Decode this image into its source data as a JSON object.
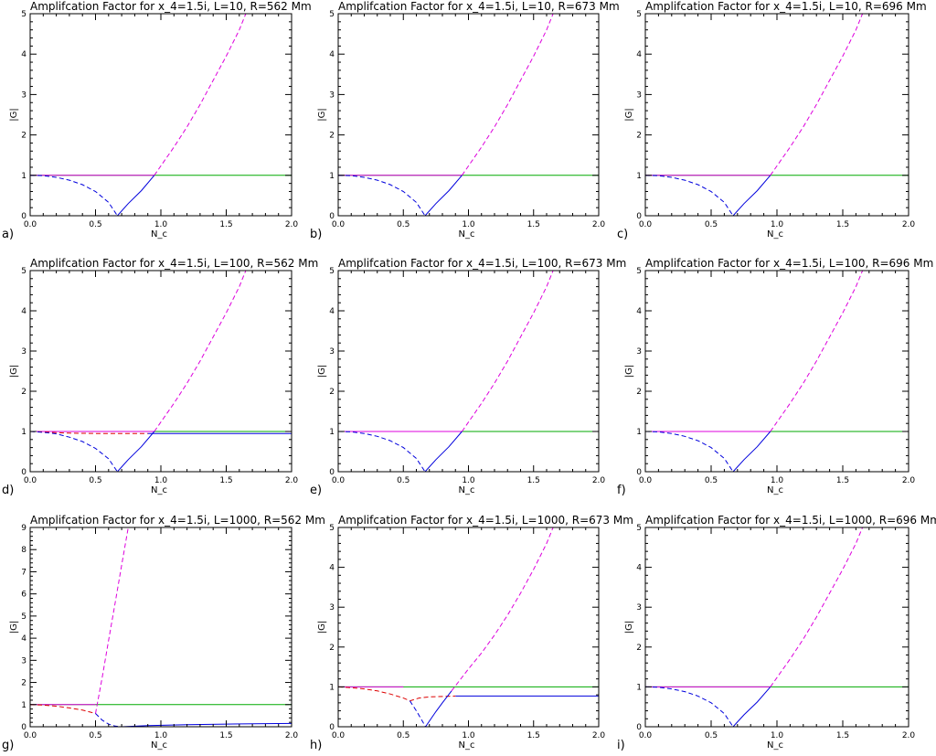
{
  "chart_data": [
    {
      "panel": "a)",
      "type": "line",
      "title": "Amplifcation Factor for x_4=1.5i, L=10, R=562 Mm",
      "xlabel": "N_c",
      "ylabel": "|G|",
      "xlim": [
        0,
        2
      ],
      "ylim": [
        0,
        5
      ],
      "xticks": [
        "0.0",
        "0.5",
        "1.0",
        "1.5",
        "2.0"
      ],
      "yticks": [
        "0",
        "1",
        "2",
        "3",
        "4",
        "5"
      ],
      "grid": false,
      "series": [
        {
          "color": "#00aa00",
          "dash": "solid",
          "x": [
            0,
            2
          ],
          "y": [
            1,
            1
          ]
        },
        {
          "color": "#dd00dd",
          "dash": "solid",
          "x": [
            0,
            0.95
          ],
          "y": [
            1,
            1
          ]
        },
        {
          "color": "#0000dd",
          "dash": "dashed",
          "x": [
            0,
            0.1,
            0.2,
            0.3,
            0.4,
            0.5,
            0.6,
            0.667
          ],
          "y": [
            1,
            0.99,
            0.95,
            0.88,
            0.77,
            0.6,
            0.33,
            0
          ]
        },
        {
          "color": "#0000dd",
          "dash": "solid",
          "x": [
            0.667,
            0.75,
            0.85,
            0.95
          ],
          "y": [
            0,
            0.3,
            0.62,
            1
          ]
        },
        {
          "color": "#dd00dd",
          "dash": "dashed",
          "x": [
            0.95,
            1.1,
            1.2,
            1.3,
            1.4,
            1.5,
            1.6,
            1.65
          ],
          "y": [
            1,
            1.7,
            2.2,
            2.75,
            3.35,
            3.95,
            4.6,
            5
          ]
        }
      ]
    },
    {
      "panel": "b)",
      "type": "line",
      "title": "Amplifcation Factor for x_4=1.5i, L=10, R=673 Mm",
      "xlabel": "N_c",
      "ylabel": "|G|",
      "xlim": [
        0,
        2
      ],
      "ylim": [
        0,
        5
      ],
      "xticks": [
        "0.0",
        "0.5",
        "1.0",
        "1.5",
        "2.0"
      ],
      "yticks": [
        "0",
        "1",
        "2",
        "3",
        "4",
        "5"
      ],
      "grid": false,
      "series": [
        {
          "color": "#00aa00",
          "dash": "solid",
          "x": [
            0,
            2
          ],
          "y": [
            1,
            1
          ]
        },
        {
          "color": "#dd00dd",
          "dash": "solid",
          "x": [
            0,
            0.95
          ],
          "y": [
            1,
            1
          ]
        },
        {
          "color": "#0000dd",
          "dash": "dashed",
          "x": [
            0,
            0.1,
            0.2,
            0.3,
            0.4,
            0.5,
            0.6,
            0.667
          ],
          "y": [
            1,
            0.99,
            0.95,
            0.88,
            0.77,
            0.6,
            0.33,
            0
          ]
        },
        {
          "color": "#0000dd",
          "dash": "solid",
          "x": [
            0.667,
            0.75,
            0.85,
            0.95
          ],
          "y": [
            0,
            0.3,
            0.62,
            1
          ]
        },
        {
          "color": "#dd00dd",
          "dash": "dashed",
          "x": [
            0.95,
            1.1,
            1.2,
            1.3,
            1.4,
            1.5,
            1.6,
            1.65
          ],
          "y": [
            1,
            1.7,
            2.2,
            2.75,
            3.35,
            3.95,
            4.6,
            5
          ]
        }
      ]
    },
    {
      "panel": "c)",
      "type": "line",
      "title": "Amplifcation Factor for x_4=1.5i, L=10, R=696 Mm",
      "xlabel": "N_c",
      "ylabel": "|G|",
      "xlim": [
        0,
        2
      ],
      "ylim": [
        0,
        5
      ],
      "xticks": [
        "0.0",
        "0.5",
        "1.0",
        "1.5",
        "2.0"
      ],
      "yticks": [
        "0",
        "1",
        "2",
        "3",
        "4",
        "5"
      ],
      "grid": false,
      "series": [
        {
          "color": "#00aa00",
          "dash": "solid",
          "x": [
            0,
            2
          ],
          "y": [
            1,
            1
          ]
        },
        {
          "color": "#dd00dd",
          "dash": "solid",
          "x": [
            0,
            0.95
          ],
          "y": [
            1,
            1
          ]
        },
        {
          "color": "#0000dd",
          "dash": "dashed",
          "x": [
            0,
            0.1,
            0.2,
            0.3,
            0.4,
            0.5,
            0.6,
            0.667
          ],
          "y": [
            1,
            0.99,
            0.95,
            0.88,
            0.77,
            0.6,
            0.33,
            0
          ]
        },
        {
          "color": "#0000dd",
          "dash": "solid",
          "x": [
            0.667,
            0.75,
            0.85,
            0.95
          ],
          "y": [
            0,
            0.3,
            0.62,
            1
          ]
        },
        {
          "color": "#dd00dd",
          "dash": "dashed",
          "x": [
            0.95,
            1.1,
            1.2,
            1.3,
            1.4,
            1.5,
            1.6,
            1.65
          ],
          "y": [
            1,
            1.7,
            2.2,
            2.75,
            3.35,
            3.95,
            4.6,
            5
          ]
        }
      ]
    },
    {
      "panel": "d)",
      "type": "line",
      "title": "Amplifcation Factor for x_4=1.5i, L=100, R=562 Mm",
      "xlabel": "N_c",
      "ylabel": "|G|",
      "xlim": [
        0,
        2
      ],
      "ylim": [
        0,
        5
      ],
      "xticks": [
        "0.0",
        "0.5",
        "1.0",
        "1.5",
        "2.0"
      ],
      "yticks": [
        "0",
        "1",
        "2",
        "3",
        "4",
        "5"
      ],
      "grid": false,
      "series": [
        {
          "color": "#00aa00",
          "dash": "solid",
          "x": [
            0,
            2
          ],
          "y": [
            1,
            1
          ]
        },
        {
          "color": "#dd00dd",
          "dash": "solid",
          "x": [
            0,
            0.95
          ],
          "y": [
            1,
            1
          ]
        },
        {
          "color": "#dd0000",
          "dash": "dashed",
          "x": [
            0,
            0.1,
            0.2,
            0.3,
            0.5,
            0.7,
            0.9
          ],
          "y": [
            1,
            0.99,
            0.97,
            0.96,
            0.95,
            0.95,
            0.95
          ]
        },
        {
          "color": "#0000dd",
          "dash": "solid",
          "x": [
            0.9,
            1.2,
            1.5,
            1.8,
            2.0
          ],
          "y": [
            0.95,
            0.95,
            0.95,
            0.95,
            0.95
          ]
        },
        {
          "color": "#0000dd",
          "dash": "dashed",
          "x": [
            0,
            0.1,
            0.2,
            0.3,
            0.4,
            0.5,
            0.6,
            0.667
          ],
          "y": [
            1,
            0.98,
            0.94,
            0.86,
            0.75,
            0.58,
            0.32,
            0
          ]
        },
        {
          "color": "#0000dd",
          "dash": "solid",
          "x": [
            0.667,
            0.75,
            0.85,
            0.95
          ],
          "y": [
            0,
            0.3,
            0.62,
            1
          ]
        },
        {
          "color": "#dd00dd",
          "dash": "dashed",
          "x": [
            0.95,
            1.1,
            1.2,
            1.3,
            1.4,
            1.5,
            1.6,
            1.65
          ],
          "y": [
            1,
            1.7,
            2.2,
            2.75,
            3.35,
            3.95,
            4.6,
            5
          ]
        }
      ]
    },
    {
      "panel": "e)",
      "type": "line",
      "title": "Amplifcation Factor for x_4=1.5i, L=100, R=673 Mm",
      "xlabel": "N_c",
      "ylabel": "|G|",
      "xlim": [
        0,
        2
      ],
      "ylim": [
        0,
        5
      ],
      "xticks": [
        "0.0",
        "0.5",
        "1.0",
        "1.5",
        "2.0"
      ],
      "yticks": [
        "0",
        "1",
        "2",
        "3",
        "4",
        "5"
      ],
      "grid": false,
      "series": [
        {
          "color": "#00aa00",
          "dash": "solid",
          "x": [
            0,
            2
          ],
          "y": [
            1,
            1
          ]
        },
        {
          "color": "#dd00dd",
          "dash": "solid",
          "x": [
            0,
            0.95
          ],
          "y": [
            1,
            1
          ]
        },
        {
          "color": "#0000dd",
          "dash": "dashed",
          "x": [
            0,
            0.1,
            0.2,
            0.3,
            0.4,
            0.5,
            0.6,
            0.667
          ],
          "y": [
            1,
            0.99,
            0.95,
            0.88,
            0.77,
            0.6,
            0.33,
            0
          ]
        },
        {
          "color": "#0000dd",
          "dash": "solid",
          "x": [
            0.667,
            0.75,
            0.85,
            0.95
          ],
          "y": [
            0,
            0.3,
            0.62,
            1
          ]
        },
        {
          "color": "#dd00dd",
          "dash": "dashed",
          "x": [
            0.95,
            1.1,
            1.2,
            1.3,
            1.4,
            1.5,
            1.6,
            1.65
          ],
          "y": [
            1,
            1.7,
            2.2,
            2.75,
            3.35,
            3.95,
            4.6,
            5
          ]
        }
      ]
    },
    {
      "panel": "f)",
      "type": "line",
      "title": "Amplifcation Factor for x_4=1.5i, L=100, R=696 Mm",
      "xlabel": "N_c",
      "ylabel": "|G|",
      "xlim": [
        0,
        2
      ],
      "ylim": [
        0,
        5
      ],
      "xticks": [
        "0.0",
        "0.5",
        "1.0",
        "1.5",
        "2.0"
      ],
      "yticks": [
        "0",
        "1",
        "2",
        "3",
        "4",
        "5"
      ],
      "grid": false,
      "series": [
        {
          "color": "#00aa00",
          "dash": "solid",
          "x": [
            0,
            2
          ],
          "y": [
            1,
            1
          ]
        },
        {
          "color": "#dd00dd",
          "dash": "solid",
          "x": [
            0,
            0.95
          ],
          "y": [
            1,
            1
          ]
        },
        {
          "color": "#0000dd",
          "dash": "dashed",
          "x": [
            0,
            0.1,
            0.2,
            0.3,
            0.4,
            0.5,
            0.6,
            0.667
          ],
          "y": [
            1,
            0.99,
            0.95,
            0.88,
            0.77,
            0.6,
            0.33,
            0
          ]
        },
        {
          "color": "#0000dd",
          "dash": "solid",
          "x": [
            0.667,
            0.75,
            0.85,
            0.95
          ],
          "y": [
            0,
            0.3,
            0.62,
            1
          ]
        },
        {
          "color": "#dd00dd",
          "dash": "dashed",
          "x": [
            0.95,
            1.1,
            1.2,
            1.3,
            1.4,
            1.5,
            1.6,
            1.65
          ],
          "y": [
            1,
            1.7,
            2.2,
            2.75,
            3.35,
            3.95,
            4.6,
            5
          ]
        }
      ]
    },
    {
      "panel": "g)",
      "type": "line",
      "title": "Amplifcation Factor for x_4=1.5i, L=1000, R=562 Mm",
      "xlabel": "N_c",
      "ylabel": "|G|",
      "xlim": [
        0,
        2
      ],
      "ylim": [
        0,
        9
      ],
      "xticks": [
        "0.0",
        "0.5",
        "1.0",
        "1.5",
        "2.0"
      ],
      "yticks": [
        "0",
        "1",
        "2",
        "3",
        "4",
        "5",
        "6",
        "7",
        "8",
        "9"
      ],
      "grid": false,
      "series": [
        {
          "color": "#00aa00",
          "dash": "solid",
          "x": [
            0,
            2
          ],
          "y": [
            1,
            1
          ]
        },
        {
          "color": "#dd00dd",
          "dash": "solid",
          "x": [
            0,
            0.5
          ],
          "y": [
            1,
            1
          ]
        },
        {
          "color": "#dd0000",
          "dash": "dashed",
          "x": [
            0,
            0.1,
            0.2,
            0.3,
            0.4,
            0.5
          ],
          "y": [
            1,
            0.98,
            0.93,
            0.85,
            0.75,
            0.6
          ]
        },
        {
          "color": "#dd00dd",
          "dash": "dashed",
          "x": [
            0.5,
            0.55,
            0.6,
            0.65,
            0.7,
            0.75
          ],
          "y": [
            0.6,
            2.2,
            3.9,
            5.6,
            7.3,
            9
          ]
        },
        {
          "color": "#0000dd",
          "dash": "dashed",
          "x": [
            0.5,
            0.55,
            0.6,
            0.65,
            0.7
          ],
          "y": [
            0.6,
            0.3,
            0.12,
            0.03,
            0
          ]
        },
        {
          "color": "#0000dd",
          "dash": "solid",
          "x": [
            0.7,
            0.9,
            1.2,
            1.5,
            1.8,
            2.0
          ],
          "y": [
            0,
            0.05,
            0.09,
            0.12,
            0.14,
            0.15
          ]
        }
      ]
    },
    {
      "panel": "h)",
      "type": "line",
      "title": "Amplifcation Factor for x_4=1.5i, L=1000, R=673 Mm",
      "xlabel": "N_c",
      "ylabel": "|G|",
      "xlim": [
        0,
        2
      ],
      "ylim": [
        0,
        5
      ],
      "xticks": [
        "0.0",
        "0.5",
        "1.0",
        "1.5",
        "2.0"
      ],
      "yticks": [
        "0",
        "1",
        "2",
        "3",
        "4",
        "5"
      ],
      "grid": false,
      "series": [
        {
          "color": "#00aa00",
          "dash": "solid",
          "x": [
            0,
            2
          ],
          "y": [
            1,
            1
          ]
        },
        {
          "color": "#dd00dd",
          "dash": "solid",
          "x": [
            0,
            0.5
          ],
          "y": [
            1,
            1
          ]
        },
        {
          "color": "#dd0000",
          "dash": "dashed",
          "x": [
            0,
            0.1,
            0.2,
            0.3,
            0.4,
            0.5,
            0.55,
            0.58,
            0.62,
            0.7,
            0.8,
            0.9
          ],
          "y": [
            1,
            0.98,
            0.95,
            0.9,
            0.82,
            0.72,
            0.65,
            0.68,
            0.72,
            0.75,
            0.76,
            0.77
          ]
        },
        {
          "color": "#0000dd",
          "dash": "solid",
          "x": [
            0.9,
            1.2,
            1.5,
            1.8,
            2.0
          ],
          "y": [
            0.77,
            0.77,
            0.77,
            0.77,
            0.77
          ]
        },
        {
          "color": "#0000dd",
          "dash": "dashed",
          "x": [
            0.55,
            0.6,
            0.65,
            0.67
          ],
          "y": [
            0.65,
            0.4,
            0.12,
            0
          ]
        },
        {
          "color": "#0000dd",
          "dash": "solid",
          "x": [
            0.67,
            0.75,
            0.8,
            0.87
          ],
          "y": [
            0,
            0.38,
            0.6,
            0.9
          ]
        },
        {
          "color": "#dd00dd",
          "dash": "dashed",
          "x": [
            0.87,
            1.0,
            1.1,
            1.2,
            1.3,
            1.4,
            1.5,
            1.6,
            1.65
          ],
          "y": [
            0.9,
            1.45,
            1.85,
            2.3,
            2.8,
            3.35,
            3.95,
            4.6,
            5
          ]
        }
      ]
    },
    {
      "panel": "i)",
      "type": "line",
      "title": "Amplifcation Factor for x_4=1.5i, L=1000, R=696 Mm",
      "xlabel": "N_c",
      "ylabel": "|G|",
      "xlim": [
        0,
        2
      ],
      "ylim": [
        0,
        5
      ],
      "xticks": [
        "0.0",
        "0.5",
        "1.0",
        "1.5",
        "2.0"
      ],
      "yticks": [
        "0",
        "1",
        "2",
        "3",
        "4",
        "5"
      ],
      "grid": false,
      "series": [
        {
          "color": "#00aa00",
          "dash": "solid",
          "x": [
            0,
            2
          ],
          "y": [
            1,
            1
          ]
        },
        {
          "color": "#dd00dd",
          "dash": "solid",
          "x": [
            0,
            0.95
          ],
          "y": [
            1,
            1
          ]
        },
        {
          "color": "#0000dd",
          "dash": "dashed",
          "x": [
            0,
            0.1,
            0.2,
            0.3,
            0.4,
            0.5,
            0.6,
            0.667
          ],
          "y": [
            1,
            0.99,
            0.95,
            0.88,
            0.77,
            0.6,
            0.33,
            0
          ]
        },
        {
          "color": "#0000dd",
          "dash": "solid",
          "x": [
            0.667,
            0.75,
            0.85,
            0.95
          ],
          "y": [
            0,
            0.3,
            0.62,
            1
          ]
        },
        {
          "color": "#dd00dd",
          "dash": "dashed",
          "x": [
            0.95,
            1.1,
            1.2,
            1.3,
            1.4,
            1.5,
            1.6,
            1.65
          ],
          "y": [
            1,
            1.7,
            2.2,
            2.75,
            3.35,
            3.95,
            4.6,
            5
          ]
        }
      ]
    }
  ]
}
